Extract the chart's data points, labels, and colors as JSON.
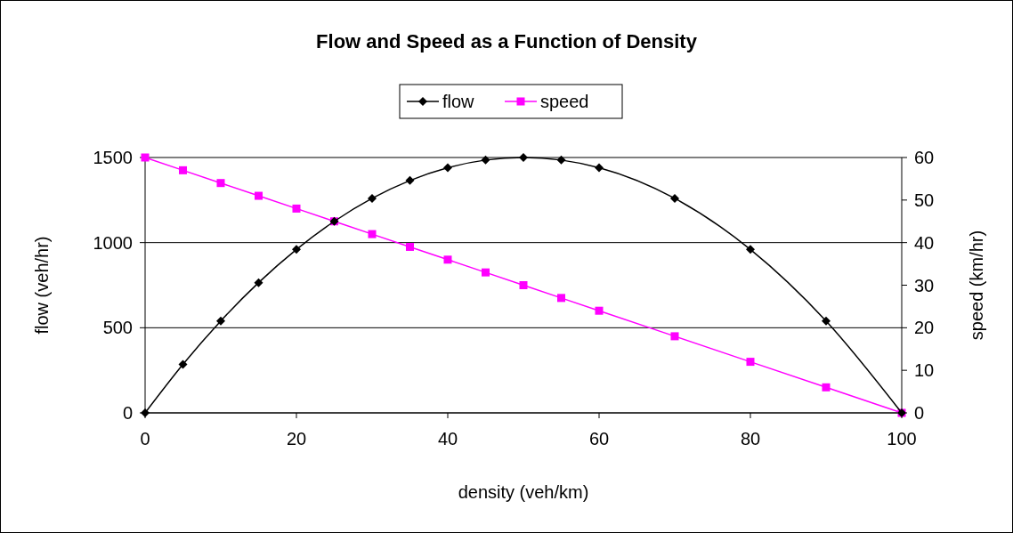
{
  "chart_data": {
    "type": "line",
    "title": "Flow and Speed as a Function of Density",
    "xlabel": "density (veh/km)",
    "ylabel": "flow  (veh/hr)",
    "y2label": "speed (km/hr)",
    "x": [
      0,
      5,
      10,
      15,
      20,
      25,
      30,
      35,
      40,
      45,
      50,
      55,
      60,
      70,
      80,
      90,
      100
    ],
    "xlim": [
      0,
      100
    ],
    "xticks": [
      0,
      20,
      40,
      60,
      80,
      100
    ],
    "ylim": [
      0,
      1500
    ],
    "yticks": [
      0,
      500,
      1000,
      1500
    ],
    "y2lim": [
      0,
      60
    ],
    "y2ticks": [
      0,
      10,
      20,
      30,
      40,
      50,
      60
    ],
    "grid": "y",
    "legend": "top",
    "series": [
      {
        "name": "flow",
        "color": "#000000",
        "marker": "diamond",
        "values": [
          0,
          285,
          540,
          765,
          960,
          1125,
          1260,
          1365,
          1440,
          1485,
          1500,
          1485,
          1440,
          1260,
          960,
          540,
          0
        ]
      },
      {
        "name": "speed",
        "color": "#ff00ff",
        "marker": "square",
        "axis": "y2",
        "values": [
          60,
          57,
          54,
          51,
          48,
          45,
          42,
          39,
          36,
          33,
          30,
          27,
          24,
          18,
          12,
          6,
          0
        ]
      }
    ]
  }
}
